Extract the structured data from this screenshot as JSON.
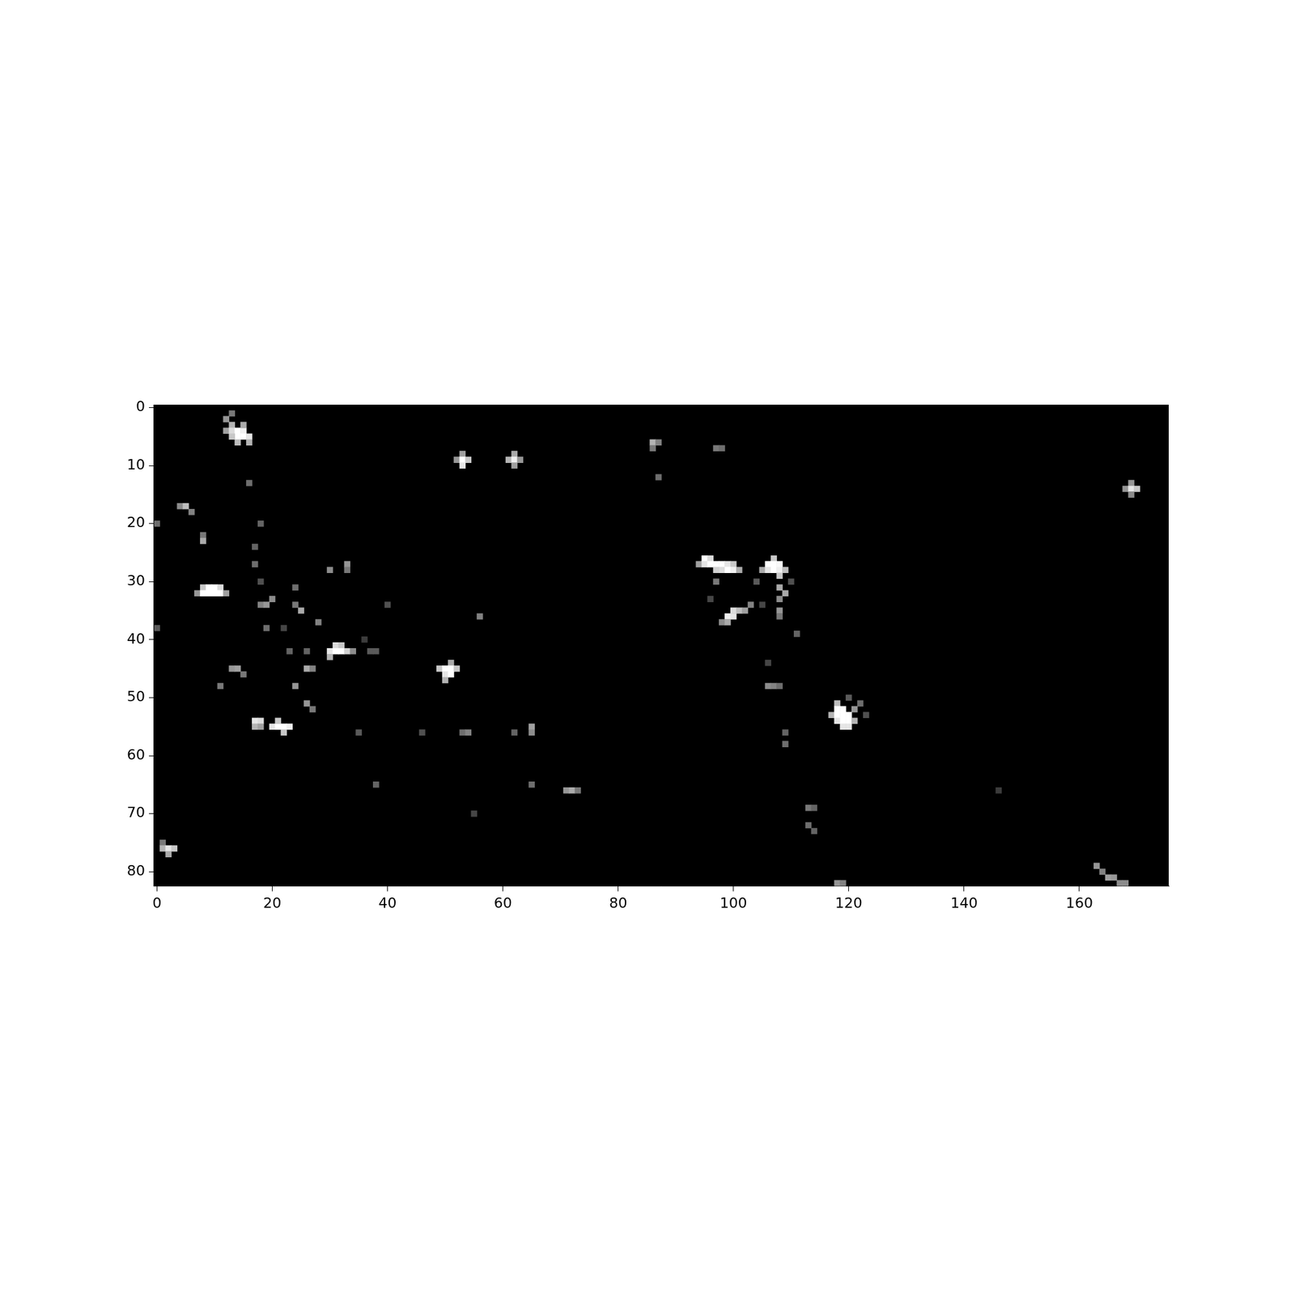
{
  "chart_data": {
    "type": "heatmap",
    "xlim": [
      -0.5,
      175.5
    ],
    "ylim": [
      -0.5,
      82.5
    ],
    "xticks": [
      0,
      20,
      40,
      60,
      80,
      100,
      120,
      140,
      160
    ],
    "yticks": [
      0,
      10,
      20,
      30,
      40,
      50,
      60,
      70,
      80
    ],
    "grid": false,
    "value_range": [
      0,
      255
    ],
    "cells": [
      [
        13,
        1,
        120
      ],
      [
        12,
        2,
        150
      ],
      [
        13,
        3,
        180
      ],
      [
        12,
        4,
        160
      ],
      [
        13,
        4,
        220
      ],
      [
        14,
        4,
        255
      ],
      [
        15,
        4,
        240
      ],
      [
        14,
        5,
        255
      ],
      [
        15,
        5,
        255
      ],
      [
        16,
        5,
        230
      ],
      [
        14,
        6,
        190
      ],
      [
        16,
        6,
        180
      ],
      [
        15,
        3,
        170
      ],
      [
        13,
        5,
        200
      ],
      [
        53,
        8,
        160
      ],
      [
        52,
        9,
        150
      ],
      [
        53,
        9,
        255
      ],
      [
        54,
        9,
        200
      ],
      [
        53,
        10,
        230
      ],
      [
        62,
        8,
        170
      ],
      [
        61,
        9,
        180
      ],
      [
        62,
        9,
        240
      ],
      [
        63,
        9,
        150
      ],
      [
        62,
        10,
        160
      ],
      [
        86,
        6,
        180
      ],
      [
        87,
        6,
        130
      ],
      [
        86,
        7,
        120
      ],
      [
        97,
        7,
        120
      ],
      [
        98,
        7,
        110
      ],
      [
        87,
        12,
        110
      ],
      [
        169,
        13,
        150
      ],
      [
        168,
        14,
        150
      ],
      [
        169,
        14,
        230
      ],
      [
        170,
        14,
        200
      ],
      [
        169,
        15,
        140
      ],
      [
        4,
        17,
        140
      ],
      [
        5,
        17,
        190
      ],
      [
        6,
        18,
        130
      ],
      [
        0,
        20,
        110
      ],
      [
        8,
        22,
        120
      ],
      [
        8,
        23,
        170
      ],
      [
        16,
        13,
        110
      ],
      [
        18,
        20,
        100
      ],
      [
        17,
        24,
        100
      ],
      [
        17,
        27,
        110
      ],
      [
        8,
        31,
        200
      ],
      [
        9,
        31,
        255
      ],
      [
        10,
        31,
        255
      ],
      [
        11,
        31,
        220
      ],
      [
        7,
        32,
        150
      ],
      [
        8,
        32,
        255
      ],
      [
        9,
        32,
        255
      ],
      [
        10,
        32,
        255
      ],
      [
        11,
        32,
        255
      ],
      [
        12,
        32,
        160
      ],
      [
        18,
        34,
        130
      ],
      [
        19,
        34,
        150
      ],
      [
        20,
        33,
        140
      ],
      [
        24,
        31,
        110
      ],
      [
        24,
        34,
        120
      ],
      [
        25,
        35,
        170
      ],
      [
        30,
        28,
        140
      ],
      [
        33,
        27,
        150
      ],
      [
        33,
        28,
        120
      ],
      [
        19,
        38,
        110
      ],
      [
        28,
        37,
        130
      ],
      [
        31,
        41,
        220
      ],
      [
        32,
        41,
        200
      ],
      [
        30,
        42,
        230
      ],
      [
        31,
        42,
        255
      ],
      [
        32,
        42,
        255
      ],
      [
        33,
        42,
        210
      ],
      [
        34,
        42,
        140
      ],
      [
        30,
        43,
        180
      ],
      [
        23,
        42,
        100
      ],
      [
        26,
        42,
        100
      ],
      [
        37,
        42,
        90
      ],
      [
        38,
        42,
        90
      ],
      [
        51,
        44,
        170
      ],
      [
        49,
        45,
        200
      ],
      [
        50,
        45,
        255
      ],
      [
        51,
        45,
        255
      ],
      [
        52,
        45,
        200
      ],
      [
        50,
        46,
        230
      ],
      [
        51,
        46,
        255
      ],
      [
        50,
        47,
        180
      ],
      [
        13,
        45,
        150
      ],
      [
        14,
        45,
        160
      ],
      [
        15,
        46,
        120
      ],
      [
        26,
        45,
        170
      ],
      [
        27,
        45,
        130
      ],
      [
        11,
        48,
        120
      ],
      [
        24,
        48,
        150
      ],
      [
        26,
        51,
        150
      ],
      [
        27,
        52,
        120
      ],
      [
        17,
        54,
        230
      ],
      [
        18,
        54,
        220
      ],
      [
        17,
        55,
        180
      ],
      [
        18,
        55,
        160
      ],
      [
        20,
        55,
        230
      ],
      [
        21,
        55,
        255
      ],
      [
        22,
        55,
        255
      ],
      [
        23,
        55,
        240
      ],
      [
        22,
        56,
        200
      ],
      [
        21,
        54,
        200
      ],
      [
        35,
        56,
        90
      ],
      [
        46,
        56,
        80
      ],
      [
        53,
        56,
        110
      ],
      [
        54,
        56,
        130
      ],
      [
        62,
        56,
        100
      ],
      [
        65,
        55,
        160
      ],
      [
        65,
        56,
        140
      ],
      [
        56,
        36,
        130
      ],
      [
        40,
        34,
        80
      ],
      [
        0,
        38,
        90
      ],
      [
        94,
        27,
        160
      ],
      [
        95,
        26,
        255
      ],
      [
        96,
        26,
        220
      ],
      [
        95,
        27,
        230
      ],
      [
        96,
        27,
        255
      ],
      [
        97,
        27,
        255
      ],
      [
        98,
        27,
        255
      ],
      [
        99,
        27,
        230
      ],
      [
        100,
        27,
        200
      ],
      [
        97,
        28,
        210
      ],
      [
        98,
        28,
        220
      ],
      [
        99,
        28,
        255
      ],
      [
        100,
        28,
        240
      ],
      [
        101,
        28,
        170
      ],
      [
        107,
        26,
        200
      ],
      [
        106,
        27,
        255
      ],
      [
        107,
        27,
        255
      ],
      [
        108,
        27,
        250
      ],
      [
        105,
        28,
        170
      ],
      [
        106,
        28,
        230
      ],
      [
        107,
        28,
        255
      ],
      [
        108,
        28,
        240
      ],
      [
        109,
        28,
        190
      ],
      [
        108,
        29,
        200
      ],
      [
        108,
        31,
        170
      ],
      [
        109,
        32,
        170
      ],
      [
        108,
        33,
        140
      ],
      [
        103,
        34,
        130
      ],
      [
        100,
        35,
        220
      ],
      [
        101,
        35,
        190
      ],
      [
        102,
        35,
        160
      ],
      [
        99,
        36,
        240
      ],
      [
        100,
        36,
        230
      ],
      [
        98,
        37,
        140
      ],
      [
        99,
        37,
        170
      ],
      [
        108,
        35,
        150
      ],
      [
        108,
        36,
        120
      ],
      [
        111,
        39,
        100
      ],
      [
        106,
        48,
        140
      ],
      [
        107,
        48,
        130
      ],
      [
        108,
        48,
        110
      ],
      [
        122,
        51,
        110
      ],
      [
        118,
        51,
        190
      ],
      [
        118,
        52,
        255
      ],
      [
        119,
        52,
        255
      ],
      [
        121,
        52,
        150
      ],
      [
        117,
        53,
        180
      ],
      [
        118,
        53,
        255
      ],
      [
        119,
        53,
        255
      ],
      [
        120,
        53,
        255
      ],
      [
        118,
        54,
        230
      ],
      [
        119,
        54,
        255
      ],
      [
        120,
        54,
        255
      ],
      [
        121,
        54,
        180
      ],
      [
        119,
        55,
        230
      ],
      [
        120,
        55,
        230
      ],
      [
        109,
        56,
        100
      ],
      [
        109,
        58,
        110
      ],
      [
        113,
        69,
        120
      ],
      [
        114,
        69,
        100
      ],
      [
        113,
        72,
        110
      ],
      [
        114,
        73,
        100
      ],
      [
        71,
        66,
        150
      ],
      [
        72,
        66,
        170
      ],
      [
        73,
        66,
        120
      ],
      [
        65,
        65,
        110
      ],
      [
        38,
        65,
        100
      ],
      [
        55,
        70,
        70
      ],
      [
        1,
        75,
        120
      ],
      [
        1,
        76,
        180
      ],
      [
        2,
        76,
        230
      ],
      [
        3,
        76,
        200
      ],
      [
        2,
        77,
        170
      ],
      [
        118,
        82,
        150
      ],
      [
        119,
        82,
        130
      ],
      [
        163,
        79,
        150
      ],
      [
        164,
        80,
        130
      ],
      [
        165,
        81,
        160
      ],
      [
        166,
        81,
        150
      ],
      [
        167,
        82,
        140
      ],
      [
        168,
        82,
        140
      ],
      [
        97,
        30,
        120
      ],
      [
        104,
        30,
        90
      ],
      [
        110,
        30,
        80
      ],
      [
        96,
        33,
        70
      ],
      [
        105,
        34,
        70
      ],
      [
        120,
        50,
        90
      ],
      [
        123,
        53,
        80
      ],
      [
        146,
        66,
        60
      ],
      [
        106,
        44,
        70
      ],
      [
        18,
        30,
        80
      ],
      [
        22,
        38,
        70
      ],
      [
        36,
        40,
        60
      ]
    ]
  }
}
